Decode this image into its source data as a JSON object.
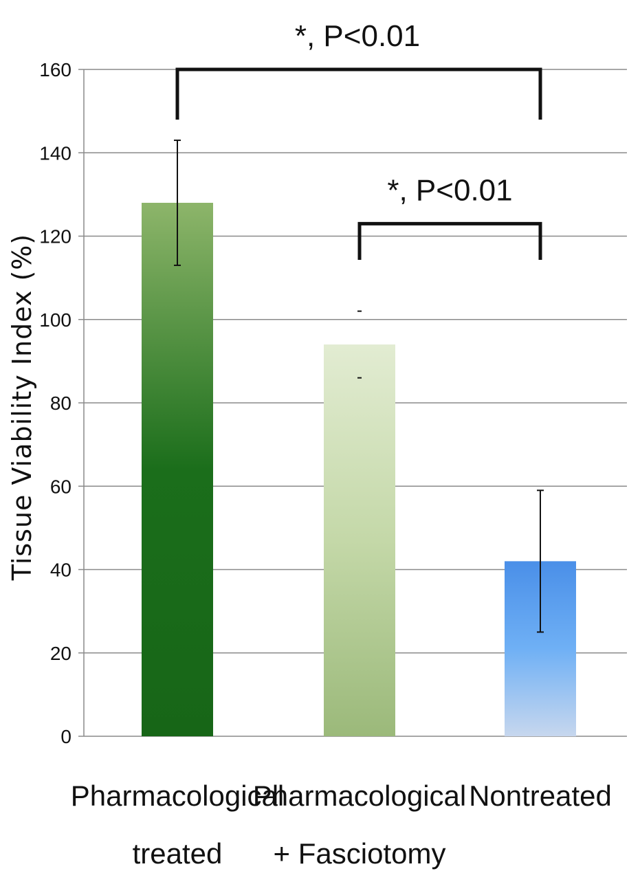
{
  "chart_data": {
    "type": "bar",
    "title": "",
    "xlabel": "",
    "ylabel": "Tissue Viability Index (%)",
    "ylim": [
      0,
      160
    ],
    "yticks": [
      0,
      20,
      40,
      60,
      80,
      100,
      120,
      140,
      160
    ],
    "grid": true,
    "categories": [
      [
        "Pharmacological",
        "treated"
      ],
      [
        "Pharmacological",
        "+ Fasciotomy"
      ],
      [
        "Nontreated"
      ]
    ],
    "values": [
      128,
      94,
      42
    ],
    "error": [
      {
        "low": 113,
        "high": 143
      },
      {
        "low": 86,
        "high": 102
      },
      {
        "low": 25,
        "high": 59
      }
    ],
    "bar_colors": [
      {
        "top": "#8db56a",
        "mid": "#1b6e1b",
        "bottom": "#176617"
      },
      {
        "top": "#e2ecd2",
        "mid": "#c4d8a8",
        "bottom": "#9bb97a"
      },
      {
        "top": "#4a8fe8",
        "mid": "#6fb0f5",
        "bottom": "#c7d7ee"
      }
    ],
    "annotations": [
      {
        "label": "*, P<0.01",
        "from": 0,
        "to": 2,
        "level": 160
      },
      {
        "label": "*, P<0.01",
        "from": 1,
        "to": 2,
        "level": 123
      }
    ]
  }
}
